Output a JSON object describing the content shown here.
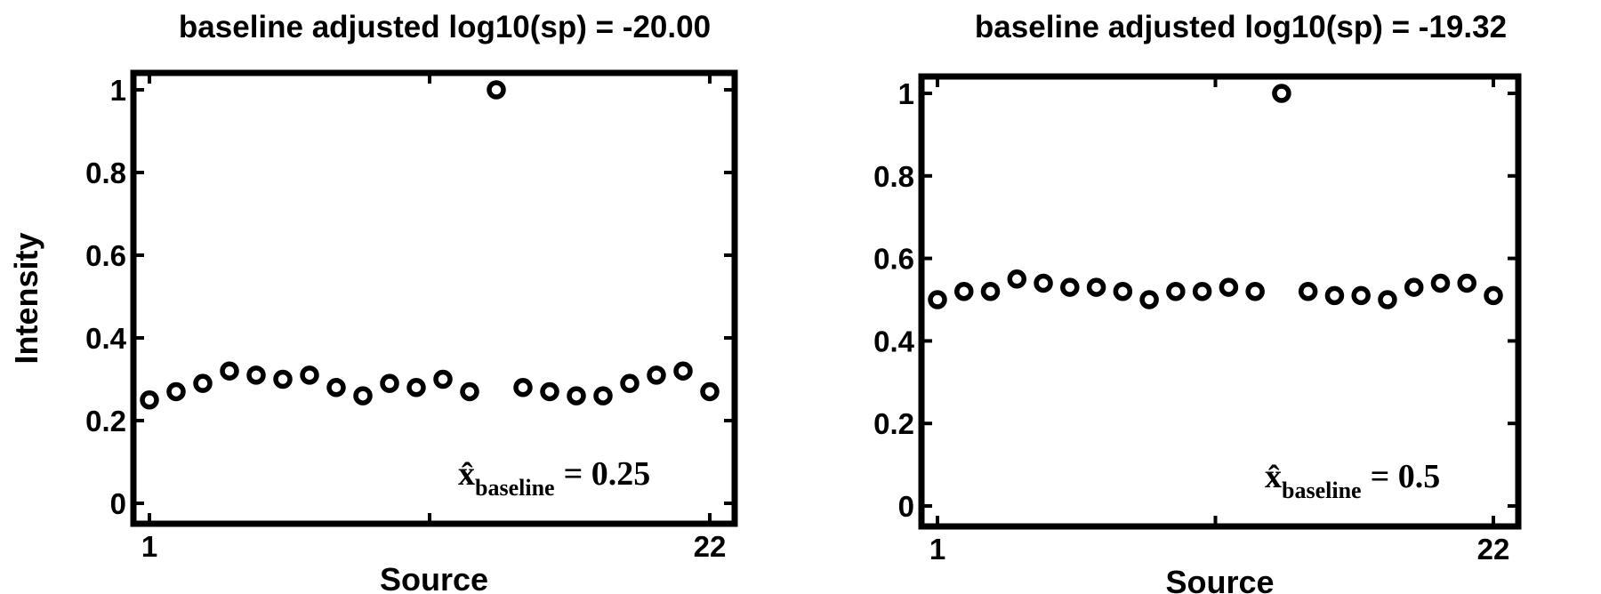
{
  "chart_data": [
    {
      "type": "scatter",
      "title": "baseline adjusted log10(sp) = -20.00",
      "xlabel": "Source",
      "ylabel": "Intensity",
      "xlim": [
        1,
        22
      ],
      "ylim": [
        0,
        1
      ],
      "x_tick_labels": [
        "1",
        "22"
      ],
      "y_tick_labels": [
        "0",
        "0.2",
        "0.4",
        "0.6",
        "0.8",
        "1"
      ],
      "x": [
        1,
        2,
        3,
        4,
        5,
        6,
        7,
        8,
        9,
        10,
        11,
        12,
        13,
        14,
        15,
        16,
        17,
        18,
        19,
        20,
        21,
        22
      ],
      "values": [
        0.25,
        0.27,
        0.29,
        0.32,
        0.31,
        0.3,
        0.31,
        0.28,
        0.26,
        0.29,
        0.28,
        0.3,
        0.27,
        1.0,
        0.28,
        0.27,
        0.26,
        0.26,
        0.29,
        0.31,
        0.32,
        0.27
      ],
      "annotation": {
        "symbol": "x̂",
        "subscript": "baseline",
        "text": "= 0.25"
      },
      "grid": false
    },
    {
      "type": "scatter",
      "title": "baseline adjusted log10(sp) = -19.32",
      "xlabel": "Source",
      "ylabel": "",
      "xlim": [
        1,
        22
      ],
      "ylim": [
        0,
        1
      ],
      "x_tick_labels": [
        "1",
        "22"
      ],
      "y_tick_labels": [
        "0",
        "0.2",
        "0.4",
        "0.6",
        "0.8",
        "1"
      ],
      "x": [
        1,
        2,
        3,
        4,
        5,
        6,
        7,
        8,
        9,
        10,
        11,
        12,
        13,
        14,
        15,
        16,
        17,
        18,
        19,
        20,
        21,
        22
      ],
      "values": [
        0.5,
        0.52,
        0.52,
        0.55,
        0.54,
        0.53,
        0.53,
        0.52,
        0.5,
        0.52,
        0.52,
        0.53,
        0.52,
        1.0,
        0.52,
        0.51,
        0.51,
        0.5,
        0.53,
        0.54,
        0.54,
        0.51
      ],
      "annotation": {
        "symbol": "x̂",
        "subscript": "baseline",
        "text": "= 0.5"
      },
      "grid": false
    }
  ]
}
